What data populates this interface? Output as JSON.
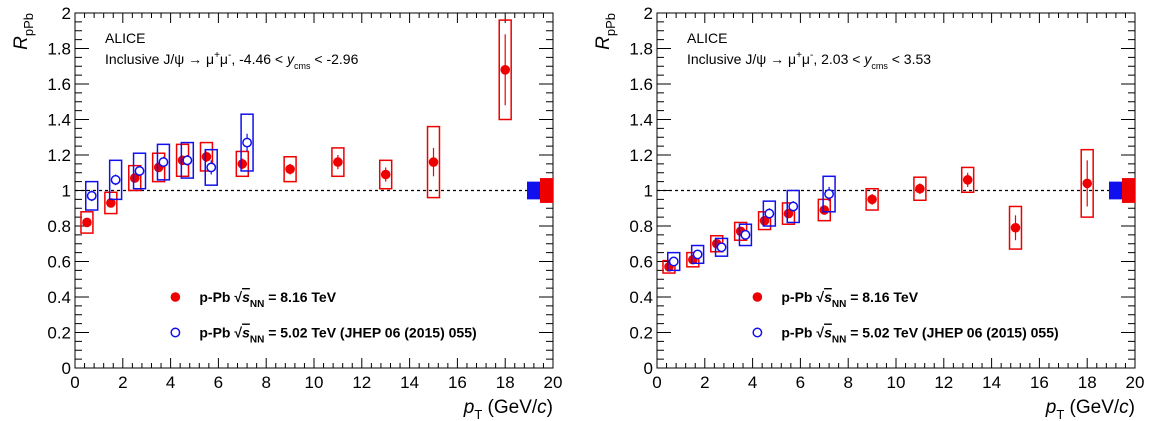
{
  "chart_data": [
    {
      "type": "scatter",
      "title": "",
      "annotation": {
        "experiment": "ALICE",
        "reaction_prefix": "Inclusive J/ψ → μ",
        "reaction_mid": "μ",
        "range_pre": ", -4.46 < ",
        "range_var": "y",
        "range_sub": "cms",
        "range_post": " < -2.96"
      },
      "xlabel": {
        "var": "p",
        "sub": "T",
        "unit": " (GeV/",
        "unit_var": "c",
        "close": ")"
      },
      "ylabel": {
        "var": "R",
        "sub": "pPb"
      },
      "xlim": [
        0,
        20
      ],
      "ylim": [
        0,
        2
      ],
      "xticks": [
        "0",
        "2",
        "4",
        "6",
        "8",
        "10",
        "12",
        "14",
        "16",
        "18",
        "20"
      ],
      "yticks": [
        "0",
        "0.2",
        "0.4",
        "0.6",
        "0.8",
        "1",
        "1.2",
        "1.4",
        "1.6",
        "1.8",
        "2"
      ],
      "reference_line": 1,
      "series": [
        {
          "name": "p-Pb √sNN = 8.16 TeV",
          "legend": {
            "pre": "p-Pb ",
            "s": "s",
            "sub": "NN",
            "post": " = 8.16 TeV"
          },
          "marker": "filled-circle",
          "color": "#ee0000",
          "points": [
            {
              "x": 0.5,
              "y": 0.82,
              "stat": 0.025,
              "syst": 0.06,
              "xerr": 0.25
            },
            {
              "x": 1.5,
              "y": 0.93,
              "stat": 0.02,
              "syst": 0.06,
              "xerr": 0.25
            },
            {
              "x": 2.5,
              "y": 1.07,
              "stat": 0.02,
              "syst": 0.07,
              "xerr": 0.25
            },
            {
              "x": 3.5,
              "y": 1.13,
              "stat": 0.02,
              "syst": 0.08,
              "xerr": 0.25
            },
            {
              "x": 4.5,
              "y": 1.17,
              "stat": 0.02,
              "syst": 0.09,
              "xerr": 0.25
            },
            {
              "x": 5.5,
              "y": 1.19,
              "stat": 0.03,
              "syst": 0.08,
              "xerr": 0.25
            },
            {
              "x": 7.0,
              "y": 1.15,
              "stat": 0.03,
              "syst": 0.07,
              "xerr": 0.25
            },
            {
              "x": 9.0,
              "y": 1.12,
              "stat": 0.03,
              "syst": 0.07,
              "xerr": 0.25
            },
            {
              "x": 11.0,
              "y": 1.16,
              "stat": 0.04,
              "syst": 0.08,
              "xerr": 0.25
            },
            {
              "x": 13.0,
              "y": 1.09,
              "stat": 0.04,
              "syst": 0.08,
              "xerr": 0.25
            },
            {
              "x": 15.0,
              "y": 1.16,
              "stat": 0.08,
              "syst": 0.2,
              "xerr": 0.25
            },
            {
              "x": 18.0,
              "y": 1.68,
              "stat": 0.2,
              "syst": 0.28,
              "xerr": 0.25
            }
          ]
        },
        {
          "name": "p-Pb √sNN = 5.02 TeV (JHEP 06 (2015) 055)",
          "legend": {
            "pre": "p-Pb ",
            "s": "s",
            "sub": "NN",
            "post": " = 5.02 TeV (JHEP 06 (2015) 055)"
          },
          "marker": "open-circle",
          "color": "#1010ee",
          "points": [
            {
              "x": 0.7,
              "y": 0.97,
              "stat": 0.03,
              "syst": 0.08,
              "xerr": 0.25
            },
            {
              "x": 1.7,
              "y": 1.06,
              "stat": 0.03,
              "syst": 0.11,
              "xerr": 0.25
            },
            {
              "x": 2.7,
              "y": 1.11,
              "stat": 0.03,
              "syst": 0.1,
              "xerr": 0.25
            },
            {
              "x": 3.7,
              "y": 1.16,
              "stat": 0.03,
              "syst": 0.1,
              "xerr": 0.25
            },
            {
              "x": 4.7,
              "y": 1.17,
              "stat": 0.03,
              "syst": 0.1,
              "xerr": 0.25
            },
            {
              "x": 5.7,
              "y": 1.13,
              "stat": 0.04,
              "syst": 0.1,
              "xerr": 0.25
            },
            {
              "x": 7.2,
              "y": 1.27,
              "stat": 0.05,
              "syst": 0.16,
              "xerr": 0.25
            }
          ]
        }
      ],
      "global_uncertainty": [
        {
          "series": 1,
          "color": "#1010ee",
          "half_height": 0.05
        },
        {
          "series": 0,
          "color": "#ee0000",
          "half_height": 0.07
        }
      ]
    },
    {
      "type": "scatter",
      "title": "",
      "annotation": {
        "experiment": "ALICE",
        "reaction_prefix": "Inclusive J/ψ → μ",
        "reaction_mid": "μ",
        "range_pre": ", 2.03 < ",
        "range_var": "y",
        "range_sub": "cms",
        "range_post": " < 3.53"
      },
      "xlabel": {
        "var": "p",
        "sub": "T",
        "unit": " (GeV/",
        "unit_var": "c",
        "close": ")"
      },
      "ylabel": {
        "var": "R",
        "sub": "pPb"
      },
      "xlim": [
        0,
        20
      ],
      "ylim": [
        0,
        2
      ],
      "xticks": [
        "0",
        "2",
        "4",
        "6",
        "8",
        "10",
        "12",
        "14",
        "16",
        "18",
        "20"
      ],
      "yticks": [
        "0",
        "0.2",
        "0.4",
        "0.6",
        "0.8",
        "1",
        "1.2",
        "1.4",
        "1.6",
        "1.8",
        "2"
      ],
      "reference_line": 1,
      "series": [
        {
          "name": "p-Pb √sNN = 8.16 TeV",
          "legend": {
            "pre": "p-Pb ",
            "s": "s",
            "sub": "NN",
            "post": " = 8.16 TeV"
          },
          "marker": "filled-circle",
          "color": "#ee0000",
          "points": [
            {
              "x": 0.5,
              "y": 0.57,
              "stat": 0.015,
              "syst": 0.035,
              "xerr": 0.25
            },
            {
              "x": 1.5,
              "y": 0.61,
              "stat": 0.015,
              "syst": 0.04,
              "xerr": 0.25
            },
            {
              "x": 2.5,
              "y": 0.7,
              "stat": 0.015,
              "syst": 0.045,
              "xerr": 0.25
            },
            {
              "x": 3.5,
              "y": 0.77,
              "stat": 0.015,
              "syst": 0.05,
              "xerr": 0.25
            },
            {
              "x": 4.5,
              "y": 0.83,
              "stat": 0.02,
              "syst": 0.05,
              "xerr": 0.25
            },
            {
              "x": 5.5,
              "y": 0.87,
              "stat": 0.02,
              "syst": 0.06,
              "xerr": 0.25
            },
            {
              "x": 7.0,
              "y": 0.89,
              "stat": 0.02,
              "syst": 0.06,
              "xerr": 0.25
            },
            {
              "x": 9.0,
              "y": 0.95,
              "stat": 0.03,
              "syst": 0.06,
              "xerr": 0.25
            },
            {
              "x": 11.0,
              "y": 1.01,
              "stat": 0.03,
              "syst": 0.065,
              "xerr": 0.25
            },
            {
              "x": 13.0,
              "y": 1.06,
              "stat": 0.04,
              "syst": 0.07,
              "xerr": 0.25
            },
            {
              "x": 15.0,
              "y": 0.79,
              "stat": 0.07,
              "syst": 0.12,
              "xerr": 0.25
            },
            {
              "x": 18.0,
              "y": 1.04,
              "stat": 0.13,
              "syst": 0.19,
              "xerr": 0.25
            }
          ]
        },
        {
          "name": "p-Pb √sNN = 5.02 TeV (JHEP 06 (2015) 055)",
          "legend": {
            "pre": "p-Pb ",
            "s": "s",
            "sub": "NN",
            "post": " = 5.02 TeV (JHEP 06 (2015) 055)"
          },
          "marker": "open-circle",
          "color": "#1010ee",
          "points": [
            {
              "x": 0.7,
              "y": 0.6,
              "stat": 0.02,
              "syst": 0.05,
              "xerr": 0.25
            },
            {
              "x": 1.7,
              "y": 0.64,
              "stat": 0.02,
              "syst": 0.05,
              "xerr": 0.25
            },
            {
              "x": 2.7,
              "y": 0.68,
              "stat": 0.02,
              "syst": 0.05,
              "xerr": 0.25
            },
            {
              "x": 3.7,
              "y": 0.75,
              "stat": 0.02,
              "syst": 0.06,
              "xerr": 0.25
            },
            {
              "x": 4.7,
              "y": 0.87,
              "stat": 0.03,
              "syst": 0.07,
              "xerr": 0.25
            },
            {
              "x": 5.7,
              "y": 0.91,
              "stat": 0.03,
              "syst": 0.09,
              "xerr": 0.25
            },
            {
              "x": 7.2,
              "y": 0.98,
              "stat": 0.04,
              "syst": 0.1,
              "xerr": 0.25
            }
          ]
        }
      ],
      "global_uncertainty": [
        {
          "series": 1,
          "color": "#1010ee",
          "half_height": 0.05
        },
        {
          "series": 0,
          "color": "#ee0000",
          "half_height": 0.07
        }
      ]
    }
  ]
}
